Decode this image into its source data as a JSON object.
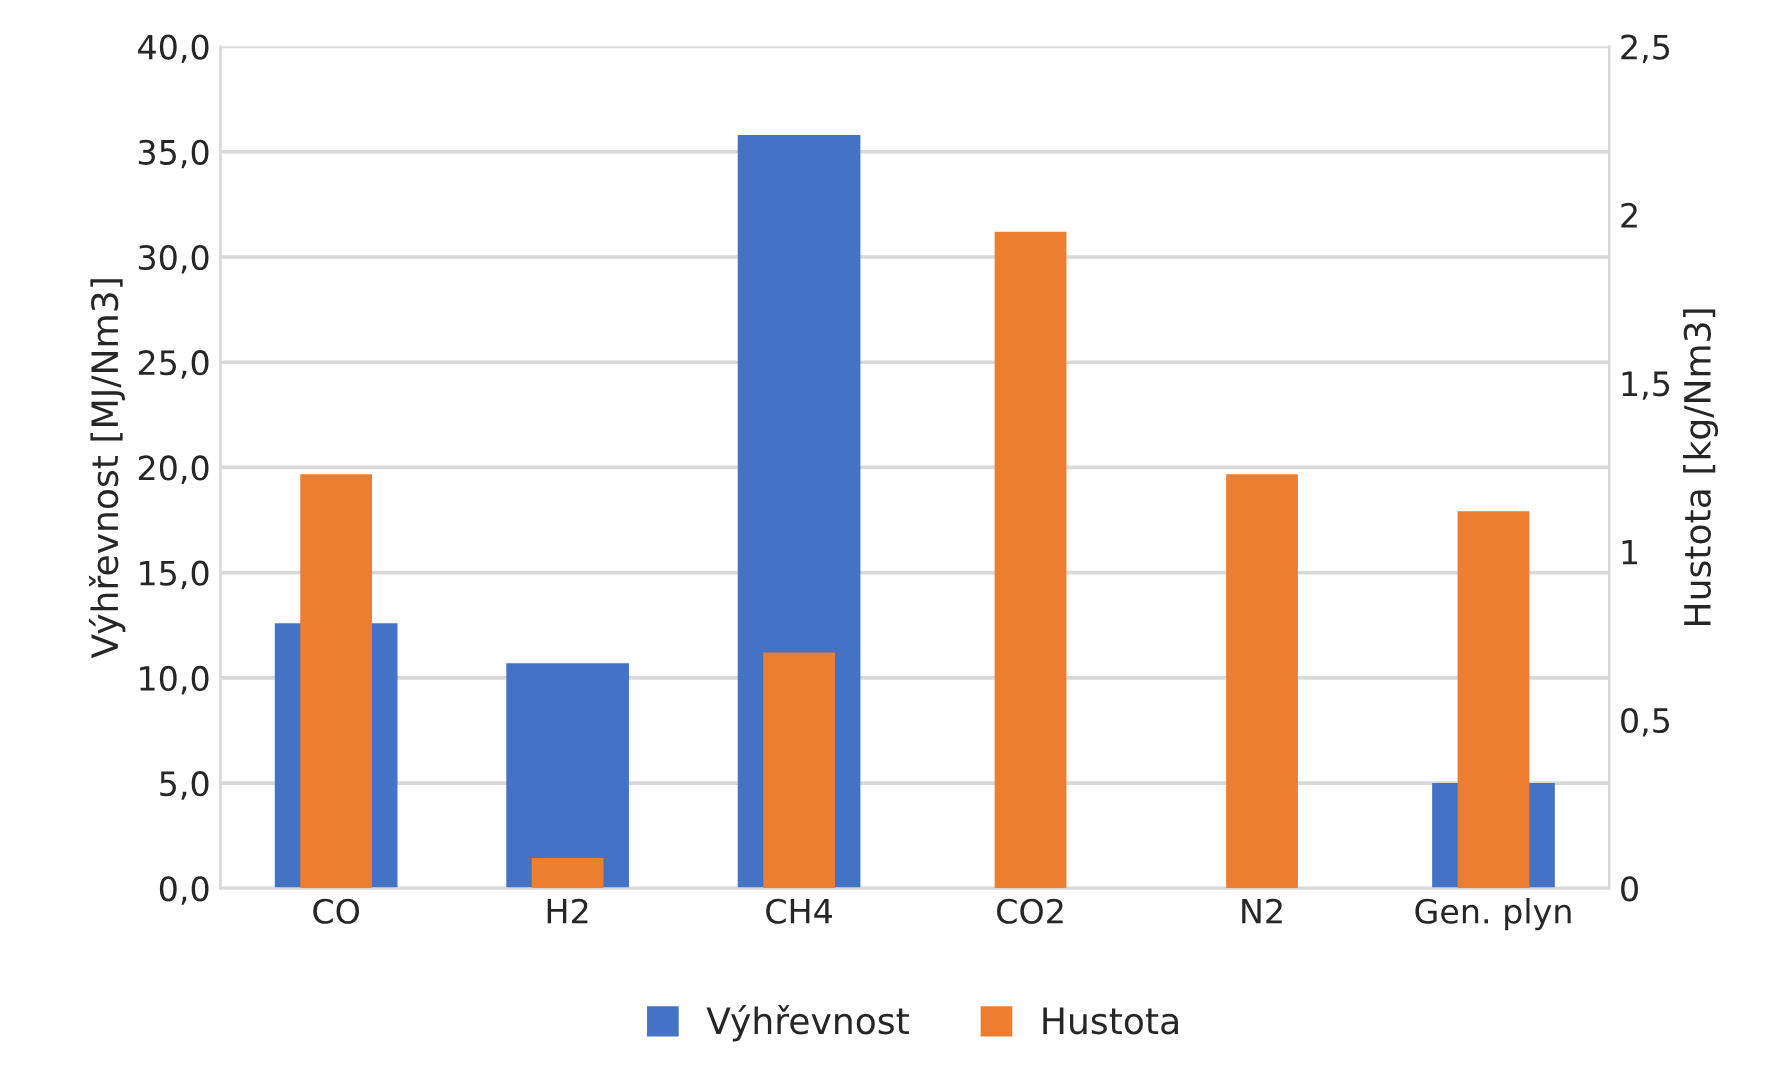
{
  "chart_data": {
    "type": "bar",
    "categories": [
      "CO",
      "H2",
      "CH4",
      "CO2",
      "N2",
      "Gen. plyn"
    ],
    "ylabel": "Výhřevnost [MJ/Nm3]",
    "y2label": "Hustota [kg/Nm3]",
    "series": [
      {
        "name": "Výhřevnost",
        "color": "#4472c4",
        "values": [
          12.6,
          10.7,
          35.8,
          null,
          null,
          5.0
        ]
      },
      {
        "name": "Hustota",
        "color": "#ed7d31",
        "axis": "y2",
        "values": [
          1.23,
          0.09,
          0.7,
          1.95,
          1.23,
          1.12
        ]
      }
    ],
    "ylim": [
      0,
      40
    ],
    "yticks": [
      {
        "value": 0,
        "label": "0,0"
      },
      {
        "value": 5,
        "label": "5,0"
      },
      {
        "value": 10,
        "label": "10,0"
      },
      {
        "value": 15,
        "label": "15,0"
      },
      {
        "value": 20,
        "label": "20,0"
      },
      {
        "value": 25,
        "label": "25,0"
      },
      {
        "value": 30,
        "label": "30,0"
      },
      {
        "value": 35,
        "label": "35,0"
      },
      {
        "value": 40,
        "label": "40,0"
      }
    ],
    "y2lim": [
      0,
      2.5
    ],
    "y2ticks": [
      0,
      {
        "value": 0.5,
        "label": "0,5"
      },
      1,
      {
        "value": 1.5,
        "label": "1,5"
      },
      2,
      {
        "value": 2.5,
        "label": "2,5"
      }
    ],
    "grid": "y",
    "legend": "bottom"
  }
}
